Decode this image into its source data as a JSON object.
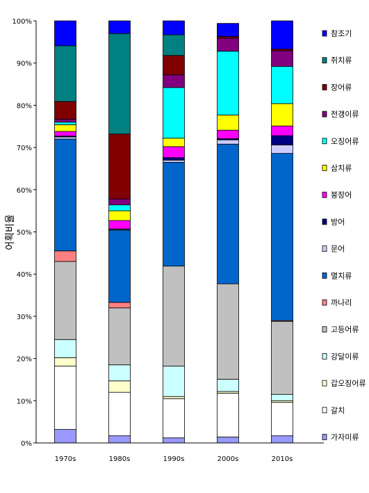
{
  "chart_data": {
    "type": "bar",
    "stacked": "percent",
    "categories": [
      "1970s",
      "1980s",
      "1990s",
      "2000s",
      "2010s"
    ],
    "ylabel": "어획비율",
    "xlabel": "",
    "ylim": [
      0,
      100
    ],
    "yticks": [
      "0%",
      "10%",
      "20%",
      "30%",
      "40%",
      "50%",
      "60%",
      "70%",
      "80%",
      "90%",
      "100%"
    ],
    "grid": false,
    "legend_position": "right",
    "series": [
      {
        "name": "가자미류",
        "color": "#9999ff",
        "values": [
          3.2,
          1.7,
          1.2,
          1.4,
          1.7
        ]
      },
      {
        "name": "갈치",
        "color": "#ffffff",
        "values": [
          15.0,
          10.3,
          9.3,
          10.4,
          7.9
        ]
      },
      {
        "name": "갑오징어류",
        "color": "#ffffcc",
        "values": [
          2.0,
          2.7,
          0.5,
          0.4,
          0.4
        ]
      },
      {
        "name": "강달이류",
        "color": "#ccffff",
        "values": [
          4.3,
          3.8,
          7.2,
          2.9,
          1.5
        ]
      },
      {
        "name": "고등어류",
        "color": "#c0c0c0",
        "values": [
          18.5,
          13.5,
          23.7,
          22.6,
          17.3
        ]
      },
      {
        "name": "까나리",
        "color": "#ff8080",
        "values": [
          2.5,
          1.3,
          0.0,
          0.0,
          0.2
        ]
      },
      {
        "name": "멸치류",
        "color": "#0066cc",
        "values": [
          26.5,
          17.1,
          24.6,
          33.1,
          39.6
        ]
      },
      {
        "name": "문어",
        "color": "#ccccff",
        "values": [
          0.5,
          0.2,
          0.5,
          1.0,
          2.0
        ]
      },
      {
        "name": "방어",
        "color": "#000080",
        "values": [
          0.2,
          0.1,
          0.6,
          0.3,
          2.2
        ]
      },
      {
        "name": "붕장어",
        "color": "#ff00ff",
        "values": [
          1.1,
          2.0,
          2.6,
          2.0,
          2.3
        ]
      },
      {
        "name": "삼치류",
        "color": "#ffff00",
        "values": [
          1.6,
          2.3,
          2.0,
          3.6,
          5.3
        ]
      },
      {
        "name": "오징어류",
        "color": "#00ffff",
        "values": [
          0.6,
          1.4,
          12.0,
          15.1,
          8.8
        ]
      },
      {
        "name": "전갱이류",
        "color": "#800080",
        "values": [
          0.7,
          1.4,
          3.0,
          3.1,
          3.7
        ]
      },
      {
        "name": "장어류",
        "color": "#800000",
        "values": [
          4.2,
          15.4,
          4.6,
          0.4,
          0.4
        ]
      },
      {
        "name": "쥐치류",
        "color": "#008080",
        "values": [
          13.2,
          23.8,
          4.9,
          0.0,
          0.0
        ]
      },
      {
        "name": "참조기",
        "color": "#0000ff",
        "values": [
          5.9,
          3.0,
          3.3,
          3.1,
          6.7
        ]
      }
    ]
  }
}
